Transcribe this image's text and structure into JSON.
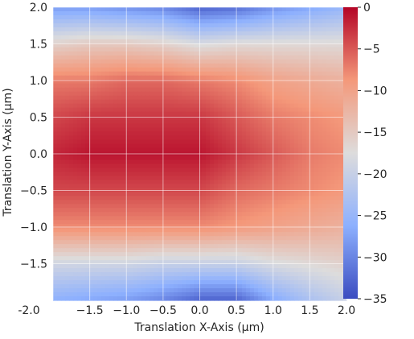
{
  "chart_data": {
    "type": "heatmap",
    "title": "",
    "xlabel": "Translation X-Axis (µm)",
    "ylabel": "Translation Y-Axis (µm)",
    "xlim": [
      -2.0,
      2.0
    ],
    "ylim": [
      -2.0,
      2.0
    ],
    "x_ticks": [
      {
        "value": -2.0,
        "label": "-2.0"
      },
      {
        "value": -1.5,
        "label": "−1.5"
      },
      {
        "value": -1.0,
        "label": "−1.0"
      },
      {
        "value": -0.5,
        "label": "−0.5"
      },
      {
        "value": 0.0,
        "label": "0.0"
      },
      {
        "value": 0.5,
        "label": "0.5"
      },
      {
        "value": 1.0,
        "label": "1.0"
      },
      {
        "value": 1.5,
        "label": "1.5"
      },
      {
        "value": 2.0,
        "label": "2.0"
      }
    ],
    "y_ticks": [
      {
        "value": 2.0,
        "label": "2.0"
      },
      {
        "value": 1.5,
        "label": "1.5"
      },
      {
        "value": 1.0,
        "label": "1.0"
      },
      {
        "value": 0.5,
        "label": "0.5"
      },
      {
        "value": 0.0,
        "label": "0.0"
      },
      {
        "value": -0.5,
        "label": "−0.5"
      },
      {
        "value": -1.0,
        "label": "−1.0"
      },
      {
        "value": -1.5,
        "label": "−1.5"
      }
    ],
    "grid": true,
    "colormap": "coolwarm",
    "colorbar": {
      "range": [
        -35,
        0
      ],
      "ticks": [
        {
          "value": 0,
          "label": "0"
        },
        {
          "value": -5,
          "label": "−5"
        },
        {
          "value": -10,
          "label": "−10"
        },
        {
          "value": -15,
          "label": "−15"
        },
        {
          "value": -20,
          "label": "−20"
        },
        {
          "value": -25,
          "label": "−25"
        },
        {
          "value": -30,
          "label": "−30"
        },
        {
          "value": -35,
          "label": "−35"
        }
      ]
    },
    "x": [
      -2.0,
      -1.5,
      -1.0,
      -0.5,
      0.0,
      0.5,
      1.0,
      1.5,
      2.0
    ],
    "y": [
      2.0,
      1.5,
      1.0,
      0.5,
      0.0,
      -0.5,
      -1.0,
      -1.5,
      -2.0
    ],
    "z": [
      [
        -28,
        -28,
        -29,
        -30,
        -33,
        -32,
        -29,
        -27,
        -25
      ],
      [
        -16,
        -15,
        -15,
        -16,
        -18,
        -17,
        -17,
        -17,
        -17
      ],
      [
        -7,
        -7,
        -6,
        -6,
        -7,
        -8,
        -10,
        -11,
        -12
      ],
      [
        -4,
        -3,
        -3,
        -3,
        -3,
        -5,
        -7,
        -8,
        -9
      ],
      [
        -2,
        -1,
        -1,
        -1,
        -1,
        -3,
        -5,
        -7,
        -8
      ],
      [
        -4,
        -4,
        -4,
        -4,
        -4,
        -6,
        -7,
        -8,
        -9
      ],
      [
        -8,
        -8,
        -8,
        -8,
        -8,
        -9,
        -10,
        -11,
        -12
      ],
      [
        -19,
        -19,
        -19,
        -20,
        -20,
        -20,
        -18,
        -17,
        -16
      ],
      [
        -26,
        -27,
        -28,
        -30,
        -33,
        -33,
        -27,
        -23,
        -20
      ]
    ]
  }
}
